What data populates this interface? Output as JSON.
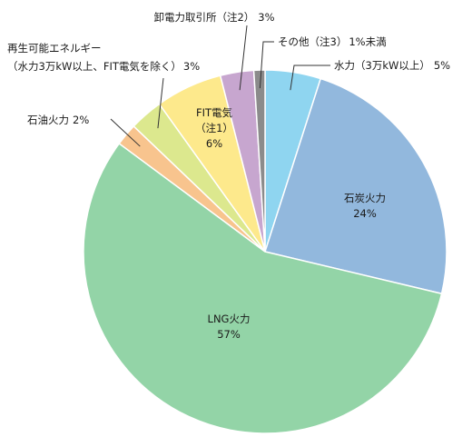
{
  "chart_data": {
    "type": "pie",
    "slices": [
      {
        "label": "水力（3万kW以上）",
        "value": 5,
        "value_label": "5%",
        "color": "#8fd5f0"
      },
      {
        "label": "石炭火力",
        "value": 24,
        "value_label": "24%",
        "color": "#92b8dd"
      },
      {
        "label": "LNG火力",
        "value": 57,
        "value_label": "57%",
        "color": "#93d4a7"
      },
      {
        "label": "石油火力",
        "value": 2,
        "value_label": "2%",
        "color": "#f8c48e"
      },
      {
        "label_lines": [
          "再生可能エネルギー",
          "（水力3万kW以上、FIT電気を除く）"
        ],
        "value": 3,
        "value_label": "3%",
        "color": "#dce88e"
      },
      {
        "label_lines": [
          "FIT電気",
          "（注1）"
        ],
        "value": 6,
        "value_label": "6%",
        "color": "#fde98c"
      },
      {
        "label": "卸電力取引所（注2）",
        "value": 3,
        "value_label": "3%",
        "color": "#c7a6cf"
      },
      {
        "label": "その他（注3）",
        "value": 1,
        "value_label": "1%未満",
        "color": "#8b8b8b"
      }
    ]
  }
}
